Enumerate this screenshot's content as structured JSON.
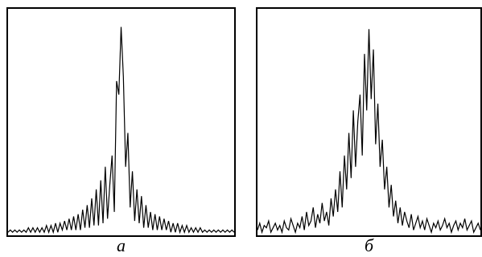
{
  "chart_data": [
    {
      "type": "line",
      "title": "а",
      "color": "#000000",
      "ylim": [
        0,
        1
      ],
      "values": [
        0.01,
        0.02,
        0.01,
        0.02,
        0.01,
        0.02,
        0.01,
        0.02,
        0.01,
        0.03,
        0.01,
        0.03,
        0.01,
        0.03,
        0.01,
        0.03,
        0.01,
        0.04,
        0.01,
        0.04,
        0.01,
        0.05,
        0.01,
        0.05,
        0.02,
        0.06,
        0.02,
        0.07,
        0.02,
        0.08,
        0.02,
        0.09,
        0.02,
        0.11,
        0.03,
        0.13,
        0.03,
        0.16,
        0.04,
        0.2,
        0.04,
        0.24,
        0.05,
        0.3,
        0.07,
        0.22,
        0.35,
        0.1,
        0.68,
        0.62,
        0.92,
        0.7,
        0.3,
        0.45,
        0.12,
        0.28,
        0.06,
        0.2,
        0.05,
        0.17,
        0.03,
        0.13,
        0.03,
        0.1,
        0.02,
        0.09,
        0.02,
        0.08,
        0.02,
        0.07,
        0.02,
        0.06,
        0.01,
        0.05,
        0.01,
        0.05,
        0.01,
        0.04,
        0.01,
        0.04,
        0.01,
        0.03,
        0.01,
        0.03,
        0.01,
        0.03,
        0.01,
        0.02,
        0.01,
        0.02,
        0.01,
        0.02,
        0.01,
        0.02,
        0.01,
        0.02,
        0.01,
        0.02,
        0.01,
        0.02,
        0.01
      ]
    },
    {
      "type": "line",
      "title": "б",
      "color": "#000000",
      "ylim": [
        0,
        1
      ],
      "values": [
        0.02,
        0.05,
        0.01,
        0.04,
        0.03,
        0.06,
        0.01,
        0.03,
        0.05,
        0.02,
        0.04,
        0.01,
        0.06,
        0.03,
        0.02,
        0.07,
        0.04,
        0.01,
        0.05,
        0.03,
        0.08,
        0.02,
        0.1,
        0.04,
        0.06,
        0.12,
        0.03,
        0.09,
        0.05,
        0.14,
        0.06,
        0.1,
        0.04,
        0.16,
        0.08,
        0.2,
        0.1,
        0.28,
        0.12,
        0.35,
        0.2,
        0.45,
        0.25,
        0.55,
        0.3,
        0.5,
        0.62,
        0.35,
        0.8,
        0.55,
        0.91,
        0.6,
        0.82,
        0.4,
        0.58,
        0.3,
        0.42,
        0.2,
        0.3,
        0.12,
        0.22,
        0.08,
        0.15,
        0.05,
        0.12,
        0.04,
        0.1,
        0.06,
        0.03,
        0.09,
        0.02,
        0.05,
        0.08,
        0.03,
        0.06,
        0.02,
        0.07,
        0.04,
        0.01,
        0.05,
        0.03,
        0.06,
        0.02,
        0.04,
        0.07,
        0.03,
        0.05,
        0.01,
        0.04,
        0.06,
        0.02,
        0.05,
        0.03,
        0.07,
        0.02,
        0.04,
        0.06,
        0.01,
        0.03,
        0.05,
        0.02
      ]
    }
  ]
}
